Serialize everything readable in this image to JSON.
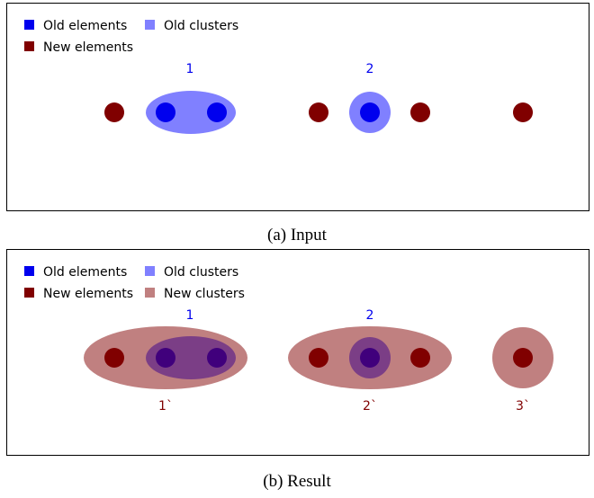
{
  "colors": {
    "old_element": "#0000ee",
    "old_cluster": "#8080ff",
    "new_element": "#800000",
    "new_cluster": "#c08080",
    "overlap": "#7b3e86",
    "overlap_element": "#40007c"
  },
  "legend": {
    "old_elements": "Old elements",
    "old_clusters": "Old clusters",
    "new_elements": "New elements",
    "new_clusters": "New clusters"
  },
  "panel_a": {
    "caption": "(a) Input",
    "old_cluster_labels": [
      "1",
      "2"
    ]
  },
  "panel_b": {
    "caption": "(b) Result",
    "old_cluster_labels": [
      "1",
      "2"
    ],
    "new_cluster_labels": [
      "1`",
      "2`",
      "3`"
    ]
  }
}
